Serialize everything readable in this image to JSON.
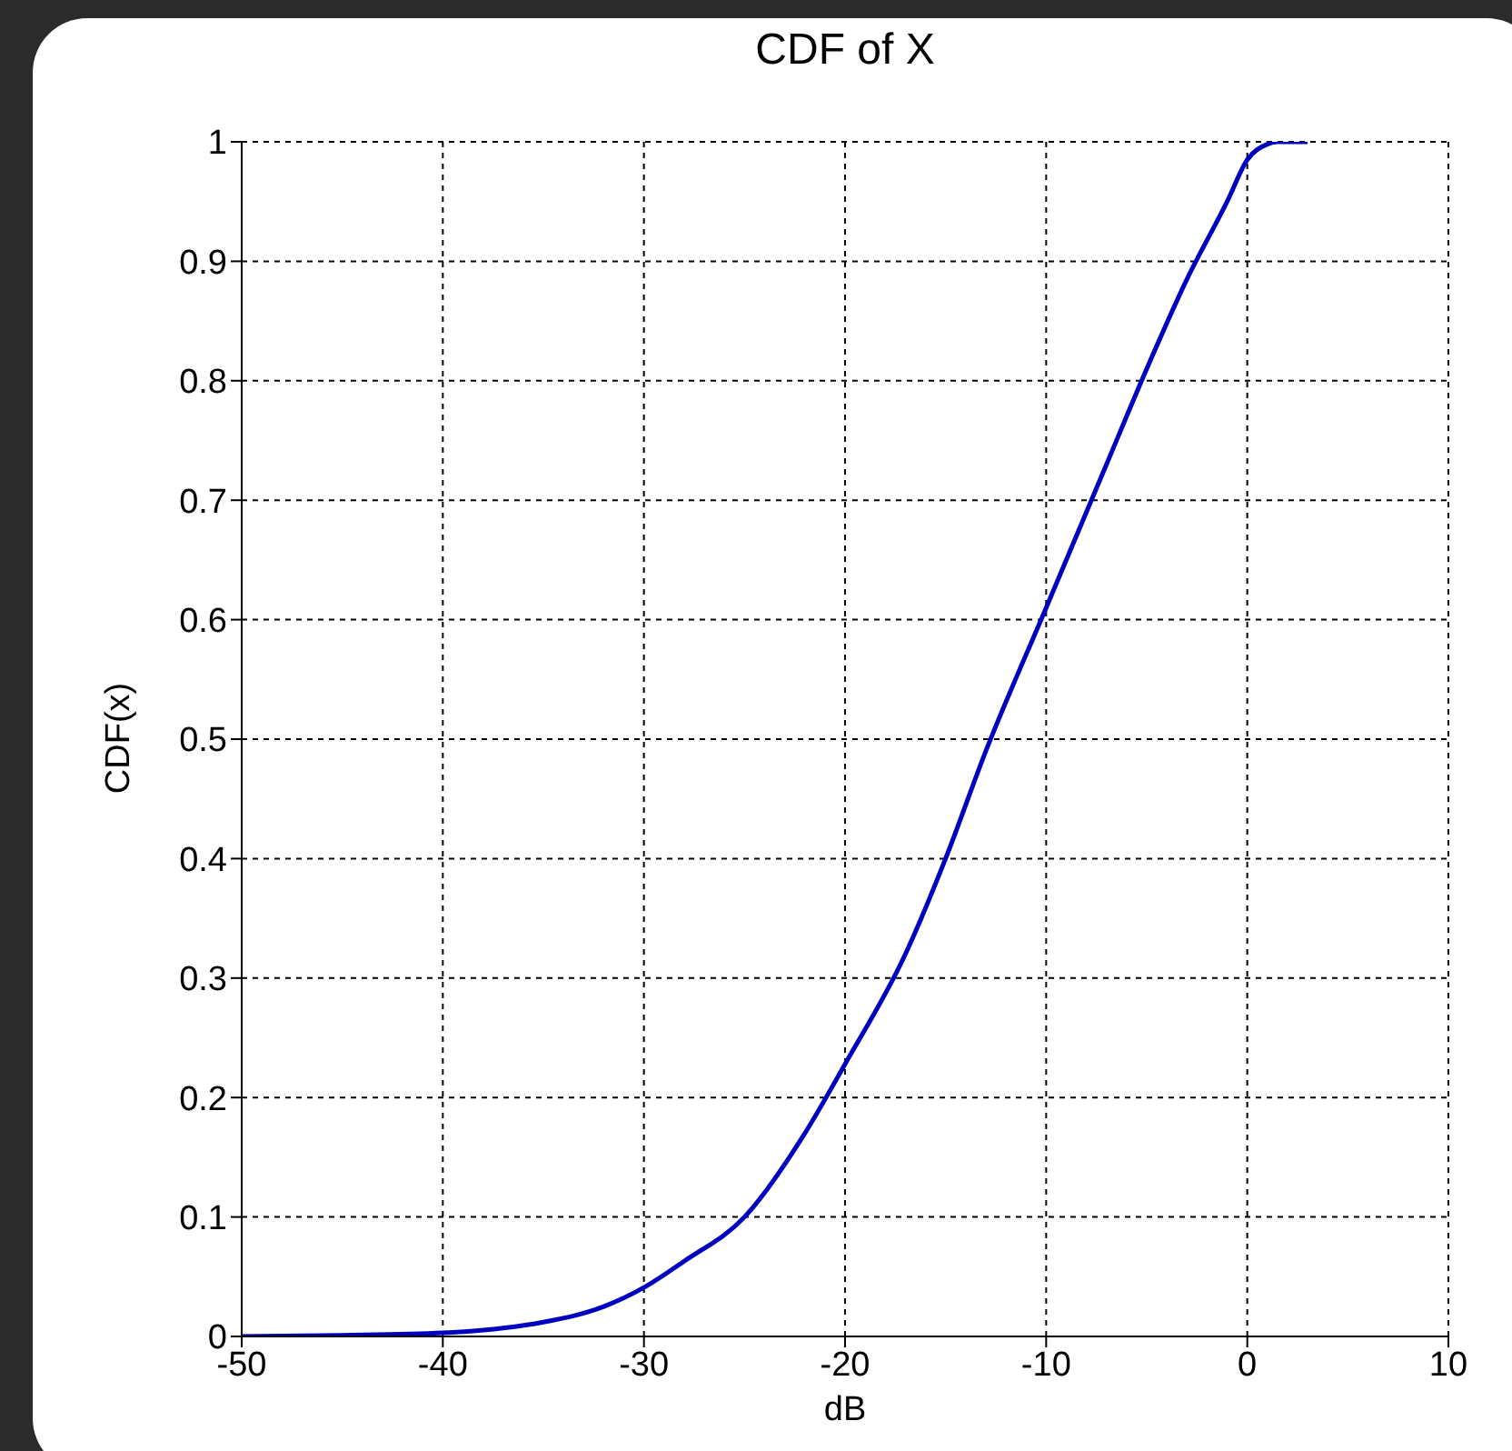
{
  "chart_data": {
    "type": "line",
    "title": "CDF of X",
    "xlabel": "dB",
    "ylabel": "CDF(x)",
    "x": [
      -50,
      -45,
      -40,
      -37,
      -35,
      -32,
      -30,
      -28,
      -25,
      -22,
      -20,
      -17,
      -15,
      -13,
      -10,
      -7,
      -5,
      -3,
      -1,
      0,
      1,
      1.5,
      3
    ],
    "series": [
      {
        "color": "#0000c0",
        "values": [
          0,
          0.001,
          0.003,
          0.007,
          0.012,
          0.025,
          0.041,
          0.063,
          0.1,
          0.17,
          0.228,
          0.32,
          0.4,
          0.49,
          0.61,
          0.73,
          0.81,
          0.885,
          0.95,
          0.985,
          0.998,
          1,
          1
        ]
      }
    ],
    "xlim": [
      -50,
      10
    ],
    "xticks": [
      -50,
      -40,
      -30,
      -20,
      -10,
      0,
      10
    ],
    "ylim": [
      0,
      1
    ],
    "yticks": [
      0,
      0.1,
      0.2,
      0.3,
      0.4,
      0.5,
      0.6,
      0.7,
      0.8,
      0.9,
      1
    ],
    "grid": true,
    "line_style": "solid",
    "marker": "none",
    "legend": false
  }
}
